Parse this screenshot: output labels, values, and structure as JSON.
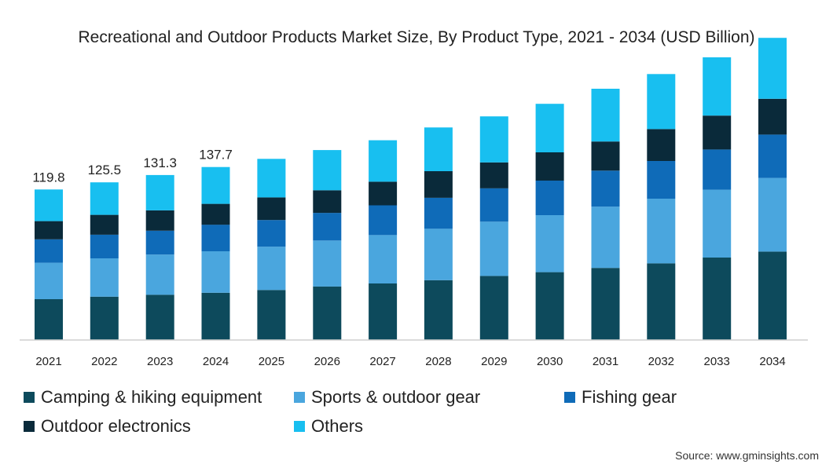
{
  "title": "Recreational and Outdoor Products Market Size, By Product Type, 2021 - 2034 (USD Billion)",
  "source": "Source: www.gminsights.com",
  "chart_data": {
    "type": "bar",
    "stacked": true,
    "title": "Recreational and Outdoor Products Market Size, By Product Type, 2021 - 2034 (USD Billion)",
    "categories": [
      "2021",
      "2022",
      "2023",
      "2024",
      "2025",
      "2026",
      "2027",
      "2028",
      "2029",
      "2030",
      "2031",
      "2032",
      "2033",
      "2034"
    ],
    "totals_labels": [
      "119.8",
      "125.5",
      "131.3",
      "137.7",
      "",
      "",
      "",
      "",
      "",
      "",
      "",
      "",
      "",
      ""
    ],
    "series": [
      {
        "name": "Camping & hiking equipment",
        "color": "#0d4a5c",
        "values": [
          32.5,
          34.5,
          36.0,
          37.6,
          39.8,
          42.6,
          45.0,
          47.6,
          51.0,
          54.0,
          57.4,
          61.0,
          65.6,
          70.4
        ]
      },
      {
        "name": "Sports & outdoor gear",
        "color": "#4aa6de",
        "values": [
          29.0,
          30.5,
          32.0,
          33.0,
          34.5,
          36.6,
          38.6,
          41.0,
          43.2,
          45.4,
          48.8,
          51.5,
          54.0,
          58.6
        ]
      },
      {
        "name": "Fishing gear",
        "color": "#0f6bb8",
        "values": [
          18.6,
          18.8,
          19.0,
          21.2,
          21.2,
          22.0,
          23.6,
          24.6,
          26.6,
          27.5,
          28.6,
          30.0,
          32.0,
          34.5
        ]
      },
      {
        "name": "Outdoor electronics",
        "color": "#0a2a3a",
        "values": [
          14.5,
          15.8,
          16.2,
          16.6,
          18.0,
          18.0,
          18.8,
          21.2,
          20.6,
          22.5,
          23.2,
          25.4,
          27.0,
          28.5
        ]
      },
      {
        "name": "Others",
        "color": "#18bff0",
        "values": [
          25.2,
          25.9,
          28.1,
          29.3,
          30.7,
          32.0,
          33.0,
          34.8,
          36.6,
          38.6,
          42.0,
          43.8,
          46.4,
          48.5
        ]
      }
    ],
    "ylim": [
      0,
      250
    ],
    "grid": false,
    "legend_position": "bottom"
  }
}
